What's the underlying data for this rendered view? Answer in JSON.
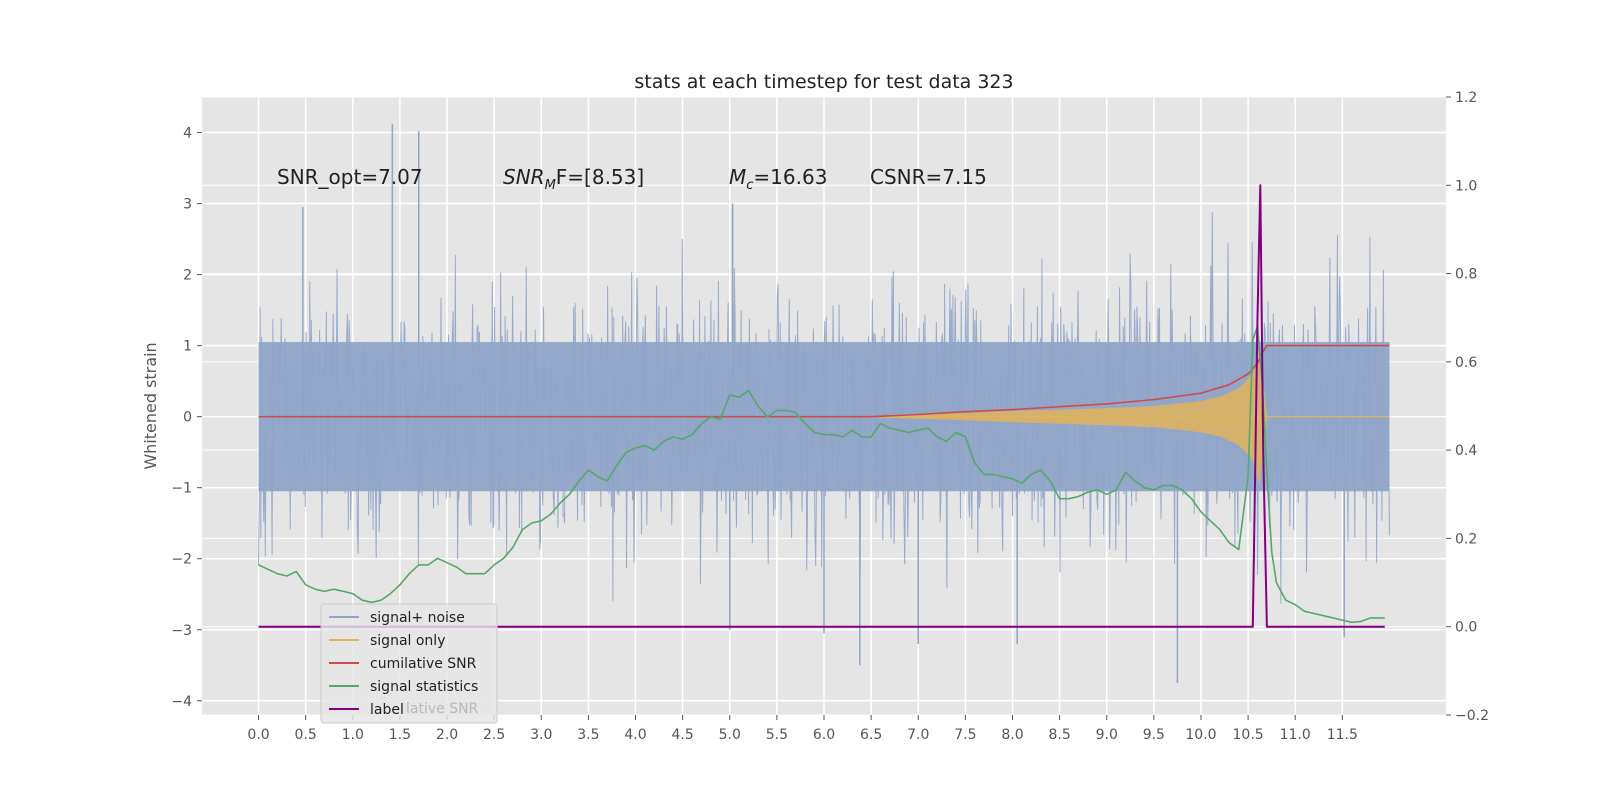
{
  "chart_data": {
    "type": "line",
    "title": "stats at each timestep for test data 323",
    "ylabel": "Whitened strain",
    "y2label": "",
    "xlim": [
      -0.6,
      12.6
    ],
    "ylim": [
      -4.2,
      4.5
    ],
    "y2lim": [
      -0.2,
      1.2
    ],
    "x_ticks": [
      "0.0",
      "0.5",
      "1.0",
      "1.5",
      "2.0",
      "2.5",
      "3.0",
      "3.5",
      "4.0",
      "4.5",
      "5.0",
      "5.5",
      "6.0",
      "6.5",
      "7.0",
      "7.5",
      "8.0",
      "8.5",
      "9.0",
      "9.5",
      "10.0",
      "10.5",
      "11.0",
      "11.5"
    ],
    "y_ticks": [
      "−4",
      "−3",
      "−2",
      "−1",
      "0",
      "1",
      "2",
      "3",
      "4"
    ],
    "y2_ticks": [
      "−0.2",
      "0.0",
      "0.2",
      "0.4",
      "0.6",
      "0.8",
      "1.0",
      "1.2"
    ],
    "grid": true,
    "legend_position": "lower-left",
    "annotations": [
      "SNR_opt=7.07",
      "SNR",
      "M",
      "F=[8.53]",
      "=16.63",
      "c",
      "CSNR=7.15"
    ],
    "noise_range": {
      "x_start": 0.0,
      "x_end": 12.0
    },
    "noise_spikes": [
      {
        "x": 1.42,
        "y": 4.12
      },
      {
        "x": 1.7,
        "y": 4.02
      },
      {
        "x": 0.47,
        "y": 2.95
      },
      {
        "x": 5.03,
        "y": 3.0
      },
      {
        "x": 9.75,
        "y": -3.75
      },
      {
        "x": 6.38,
        "y": -3.5
      },
      {
        "x": 7.0,
        "y": -3.2
      },
      {
        "x": 5.0,
        "y": -3.0
      },
      {
        "x": 6.0,
        "y": -3.05
      },
      {
        "x": 8.05,
        "y": -3.2
      },
      {
        "x": 11.52,
        "y": -3.1
      }
    ],
    "signal_envelope": {
      "x": [
        6.5,
        7.0,
        7.5,
        8.0,
        8.5,
        9.0,
        9.5,
        10.0,
        10.2,
        10.4,
        10.55,
        10.62,
        10.7,
        12.0
      ],
      "amplitude": [
        0.01,
        0.03,
        0.05,
        0.08,
        0.1,
        0.12,
        0.15,
        0.22,
        0.28,
        0.4,
        0.6,
        0.95,
        0.0,
        0.0
      ]
    },
    "series": [
      {
        "name": "signal+ noise",
        "color": "#8fa4c8",
        "axis": "left",
        "x": [],
        "y": []
      },
      {
        "name": "signal only",
        "color": "#e2b35a",
        "axis": "left",
        "x": [],
        "y": []
      },
      {
        "name": "cumilative SNR",
        "color": "#cc4c4c",
        "axis": "left",
        "x": [
          0.0,
          6.5,
          7.0,
          7.5,
          8.0,
          8.5,
          9.0,
          9.5,
          10.0,
          10.3,
          10.5,
          10.6,
          10.65,
          10.7,
          12.0
        ],
        "y": [
          0.0,
          0.0,
          0.03,
          0.07,
          0.1,
          0.14,
          0.18,
          0.24,
          0.33,
          0.45,
          0.6,
          0.75,
          0.9,
          1.0,
          1.0
        ]
      },
      {
        "name": "signal statistics",
        "color": "#55a868",
        "axis": "right",
        "x": [
          0.0,
          0.1,
          0.2,
          0.3,
          0.4,
          0.5,
          0.6,
          0.7,
          0.8,
          0.9,
          1.0,
          1.1,
          1.2,
          1.3,
          1.4,
          1.5,
          1.6,
          1.7,
          1.8,
          1.9,
          2.0,
          2.1,
          2.2,
          2.3,
          2.4,
          2.5,
          2.6,
          2.7,
          2.8,
          2.9,
          3.0,
          3.1,
          3.2,
          3.3,
          3.4,
          3.5,
          3.6,
          3.7,
          3.8,
          3.9,
          4.0,
          4.1,
          4.2,
          4.3,
          4.4,
          4.5,
          4.6,
          4.7,
          4.8,
          4.9,
          5.0,
          5.1,
          5.2,
          5.3,
          5.4,
          5.5,
          5.6,
          5.7,
          5.8,
          5.9,
          6.0,
          6.1,
          6.2,
          6.3,
          6.4,
          6.5,
          6.6,
          6.7,
          6.8,
          6.9,
          7.0,
          7.1,
          7.2,
          7.3,
          7.4,
          7.5,
          7.6,
          7.7,
          7.8,
          7.9,
          8.0,
          8.1,
          8.2,
          8.3,
          8.4,
          8.5,
          8.6,
          8.7,
          8.8,
          8.9,
          9.0,
          9.1,
          9.2,
          9.3,
          9.4,
          9.5,
          9.6,
          9.7,
          9.8,
          9.9,
          10.0,
          10.1,
          10.2,
          10.3,
          10.4,
          10.5,
          10.55,
          10.6,
          10.65,
          10.7,
          10.75,
          10.8,
          10.9,
          11.0,
          11.1,
          11.2,
          11.3,
          11.4,
          11.5,
          11.6,
          11.7,
          11.8,
          11.95
        ],
        "y": [
          0.14,
          0.13,
          0.12,
          0.115,
          0.125,
          0.095,
          0.085,
          0.08,
          0.085,
          0.08,
          0.075,
          0.06,
          0.055,
          0.06,
          0.075,
          0.095,
          0.12,
          0.14,
          0.14,
          0.155,
          0.145,
          0.135,
          0.12,
          0.12,
          0.12,
          0.14,
          0.155,
          0.18,
          0.22,
          0.235,
          0.24,
          0.255,
          0.28,
          0.3,
          0.33,
          0.355,
          0.34,
          0.33,
          0.365,
          0.395,
          0.405,
          0.41,
          0.4,
          0.42,
          0.43,
          0.425,
          0.435,
          0.46,
          0.475,
          0.47,
          0.525,
          0.52,
          0.535,
          0.5,
          0.475,
          0.49,
          0.49,
          0.485,
          0.46,
          0.44,
          0.435,
          0.435,
          0.43,
          0.445,
          0.43,
          0.43,
          0.46,
          0.45,
          0.445,
          0.44,
          0.445,
          0.45,
          0.43,
          0.42,
          0.44,
          0.43,
          0.37,
          0.345,
          0.345,
          0.34,
          0.335,
          0.325,
          0.345,
          0.355,
          0.33,
          0.29,
          0.29,
          0.295,
          0.305,
          0.31,
          0.3,
          0.31,
          0.35,
          0.33,
          0.315,
          0.31,
          0.32,
          0.32,
          0.31,
          0.29,
          0.26,
          0.24,
          0.22,
          0.19,
          0.175,
          0.34,
          0.65,
          0.68,
          0.55,
          0.35,
          0.17,
          0.1,
          0.06,
          0.05,
          0.035,
          0.03,
          0.025,
          0.02,
          0.015,
          0.01,
          0.012,
          0.02,
          0.02
        ]
      },
      {
        "name": "label",
        "color": "#800080",
        "axis": "right",
        "x": [
          0.0,
          10.55,
          10.6,
          10.63,
          10.66,
          10.7,
          11.95
        ],
        "y": [
          0.0,
          0.0,
          0.7,
          1.0,
          0.4,
          0.0,
          0.0
        ]
      }
    ],
    "legend_ghost_text": "lative SNR"
  }
}
